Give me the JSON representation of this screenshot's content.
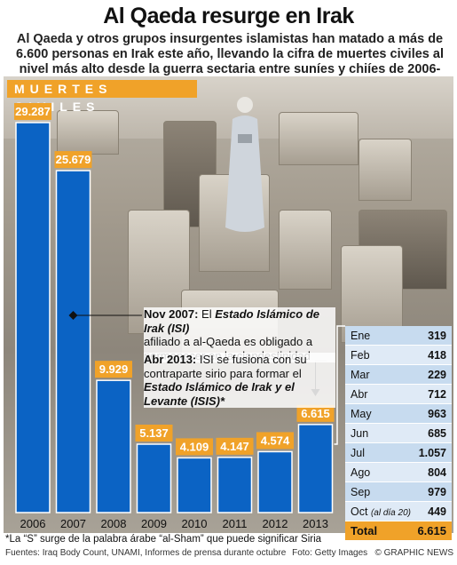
{
  "headline": "Al Qaeda resurge en Irak",
  "subtitle": "Al Qaeda y otros grupos insurgentes islamistas han matado a más de 6.600 personas en Irak este año, llevando la cifra de muertes civiles al nivel más alto desde la guerra sectaria entre suníes y chiíes de 2006-07",
  "chart_data": {
    "type": "bar",
    "title": "MUERTES CIVILES",
    "categories": [
      "2006",
      "2007",
      "2008",
      "2009",
      "2010",
      "2011",
      "2012",
      "2013"
    ],
    "values": [
      29287,
      25679,
      9929,
      5137,
      4109,
      4147,
      4574,
      6615
    ],
    "value_labels": [
      "29.287",
      "25.679",
      "9.929",
      "5.137",
      "4.109",
      "4.147",
      "4.574",
      "6.615"
    ],
    "ylim": [
      0,
      29287
    ],
    "grid": false,
    "bar_color": "#0b63c4",
    "label_color": "#f0a229"
  },
  "annotations": {
    "nov2007_date": "Nov 2007:",
    "nov2007_text1": "El",
    "nov2007_org": "Estado Islámico de Irak (ISI)",
    "nov2007_text2": "afiliado a al-Qaeda es obligado a permanecer en la clandestinidad",
    "abr2013_date": "Abr 2013:",
    "abr2013_text1": "ISI se fusiona con su contraparte sirio para formar el",
    "abr2013_org": "Estado Islámico de Irak y el Levante (ISIS)*"
  },
  "monthly_table": {
    "rows": [
      {
        "month": "Ene",
        "value": "319"
      },
      {
        "month": "Feb",
        "value": "418"
      },
      {
        "month": "Mar",
        "value": "229"
      },
      {
        "month": "Abr",
        "value": "712"
      },
      {
        "month": "May",
        "value": "963"
      },
      {
        "month": "Jun",
        "value": "685"
      },
      {
        "month": "Jul",
        "value": "1.057"
      },
      {
        "month": "Ago",
        "value": "804"
      },
      {
        "month": "Sep",
        "value": "979"
      },
      {
        "month": "Oct",
        "note": "(al día 20)",
        "value": "449"
      }
    ],
    "total_label": "Total",
    "total_value": "6.615"
  },
  "footnote": "*La “S” surge de la palabra árabe “al-Sham” que puede significar Siria",
  "sources": "Fuentes: Iraq Body Count, UNAMI, Informes de prensa durante octubre",
  "photo_credit": "Foto: Getty Images",
  "brand": "© GRAPHIC NEWS"
}
